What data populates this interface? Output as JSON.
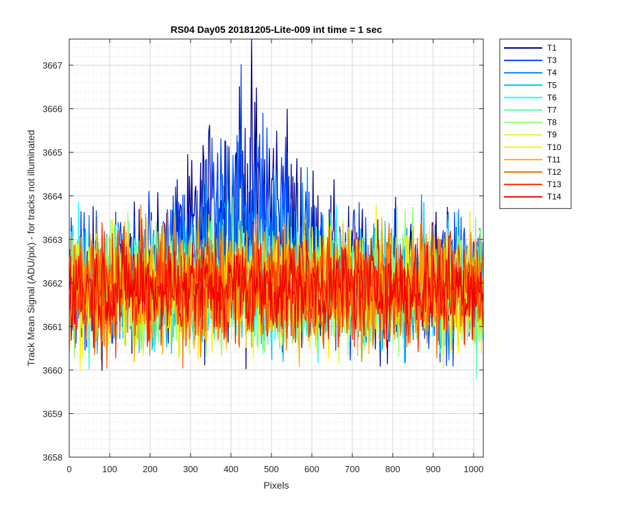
{
  "chart_data": {
    "type": "line",
    "title": "RS04 Day05 20181205-Lite-009 int time = 1 sec",
    "xlabel": "Pixels",
    "ylabel": "Track Mean Signal (ADU/pix) - for tracks not illuminated",
    "xlim": [
      0,
      1024
    ],
    "ylim": [
      3658,
      3667.6
    ],
    "xticks": [
      0,
      100,
      200,
      300,
      400,
      500,
      600,
      700,
      800,
      900,
      1000
    ],
    "yticks": [
      3658,
      3659,
      3660,
      3661,
      3662,
      3663,
      3664,
      3665,
      3666,
      3667
    ],
    "grid": "on (major and minor)",
    "legend_position": "outside-top-right",
    "series": [
      {
        "name": "T1",
        "color": "#00008f",
        "baseline": 3662.0,
        "noise": 1.1,
        "hump": 2.0
      },
      {
        "name": "T3",
        "color": "#0040ff",
        "baseline": 3662.0,
        "noise": 1.1,
        "hump": 1.6
      },
      {
        "name": "T4",
        "color": "#0080ff",
        "baseline": 3662.0,
        "noise": 1.0,
        "hump": 1.2
      },
      {
        "name": "T5",
        "color": "#00bfff",
        "baseline": 3661.9,
        "noise": 1.0,
        "hump": 0
      },
      {
        "name": "T6",
        "color": "#10ffef",
        "baseline": 3661.9,
        "noise": 1.0,
        "hump": 0
      },
      {
        "name": "T7",
        "color": "#50ffaf",
        "baseline": 3661.9,
        "noise": 1.0,
        "hump": 0
      },
      {
        "name": "T8",
        "color": "#8fff70",
        "baseline": 3661.9,
        "noise": 1.0,
        "hump": 0
      },
      {
        "name": "T9",
        "color": "#cfff30",
        "baseline": 3661.9,
        "noise": 1.0,
        "hump": 0
      },
      {
        "name": "T10",
        "color": "#ffef00",
        "baseline": 3661.9,
        "noise": 1.0,
        "hump": 0
      },
      {
        "name": "T11",
        "color": "#ffaf00",
        "baseline": 3661.9,
        "noise": 1.0,
        "hump": 0
      },
      {
        "name": "T12",
        "color": "#ff7000",
        "baseline": 3661.9,
        "noise": 1.0,
        "hump": 0
      },
      {
        "name": "T13",
        "color": "#ff3000",
        "baseline": 3661.9,
        "noise": 0.9,
        "hump": 0
      },
      {
        "name": "T14",
        "color": "#ef0000",
        "baseline": 3661.9,
        "noise": 0.8,
        "hump": 0
      }
    ]
  }
}
